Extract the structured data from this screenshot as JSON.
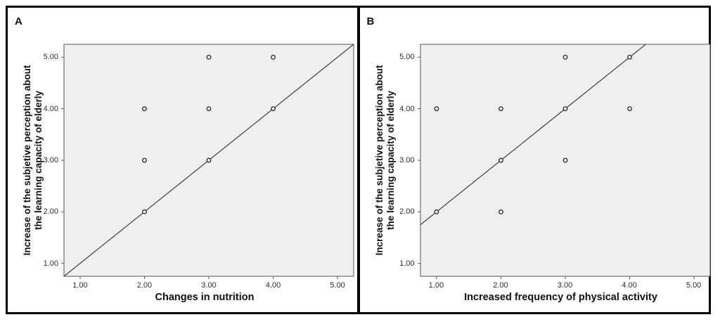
{
  "colors": {
    "plot_background": "#efefef",
    "plot_frame": "#555555",
    "fit_line": "#3d3d3d",
    "marker_stroke": "#2b2b2b",
    "marker_fill": "#efefef",
    "outer_frame": "#000000",
    "tick_label": "#2e2e2e"
  },
  "chart_data": [
    {
      "type": "scatter",
      "panel_label": "A",
      "xlabel": "Changes in nutrition",
      "ylabel": "Increase of the subjetive perception about the learning capacity of elderly",
      "ylabel_line1": "Increase of the subjetive perception about",
      "ylabel_line2": "the learning capacity of elderly",
      "xlim": [
        0.75,
        5.25
      ],
      "ylim": [
        0.75,
        5.25
      ],
      "x_tick_values": [
        1,
        2,
        3,
        4,
        5
      ],
      "x_tick_labels": [
        "1.00",
        "2.00",
        "3.00",
        "4.00",
        "5.00"
      ],
      "y_tick_values": [
        1,
        2,
        3,
        4,
        5
      ],
      "y_tick_labels": [
        "1.00",
        "2.00",
        "3.00",
        "4.00",
        "5.00"
      ],
      "grid": false,
      "legend": "none",
      "points": [
        [
          2,
          2
        ],
        [
          2,
          3
        ],
        [
          2,
          4
        ],
        [
          3,
          3
        ],
        [
          3,
          4
        ],
        [
          3,
          5
        ],
        [
          4,
          4
        ],
        [
          4,
          5
        ]
      ],
      "fit_line": {
        "slope": 1,
        "intercept": 0,
        "x1": 0.75,
        "y1": 0.75,
        "x2": 5.25,
        "y2": 5.25
      }
    },
    {
      "type": "scatter",
      "panel_label": "B",
      "xlabel": "Increased frequency of physical activity",
      "ylabel": "Increase of the subjetive perception about the learning capacity of elderly",
      "ylabel_line1": "Increase of the subjetive perception about",
      "ylabel_line2": "the learning capacity of elderly",
      "xlim": [
        0.75,
        5.25
      ],
      "ylim": [
        0.75,
        5.25
      ],
      "x_tick_values": [
        1,
        2,
        3,
        4,
        5
      ],
      "x_tick_labels": [
        "1.00",
        "2.00",
        "3.00",
        "4.00",
        "5.00"
      ],
      "y_tick_values": [
        1,
        2,
        3,
        4,
        5
      ],
      "y_tick_labels": [
        "1.00",
        "2.00",
        "3.00",
        "4.00",
        "5.00"
      ],
      "grid": false,
      "legend": "none",
      "points": [
        [
          1,
          2
        ],
        [
          1,
          4
        ],
        [
          2,
          2
        ],
        [
          2,
          3
        ],
        [
          2,
          4
        ],
        [
          3,
          3
        ],
        [
          3,
          4
        ],
        [
          3,
          5
        ],
        [
          4,
          4
        ],
        [
          4,
          5
        ]
      ],
      "fit_line": {
        "slope": 1,
        "intercept": 1,
        "x1": 0.75,
        "y1": 1.75,
        "x2": 4.25,
        "y2": 5.25
      }
    }
  ]
}
